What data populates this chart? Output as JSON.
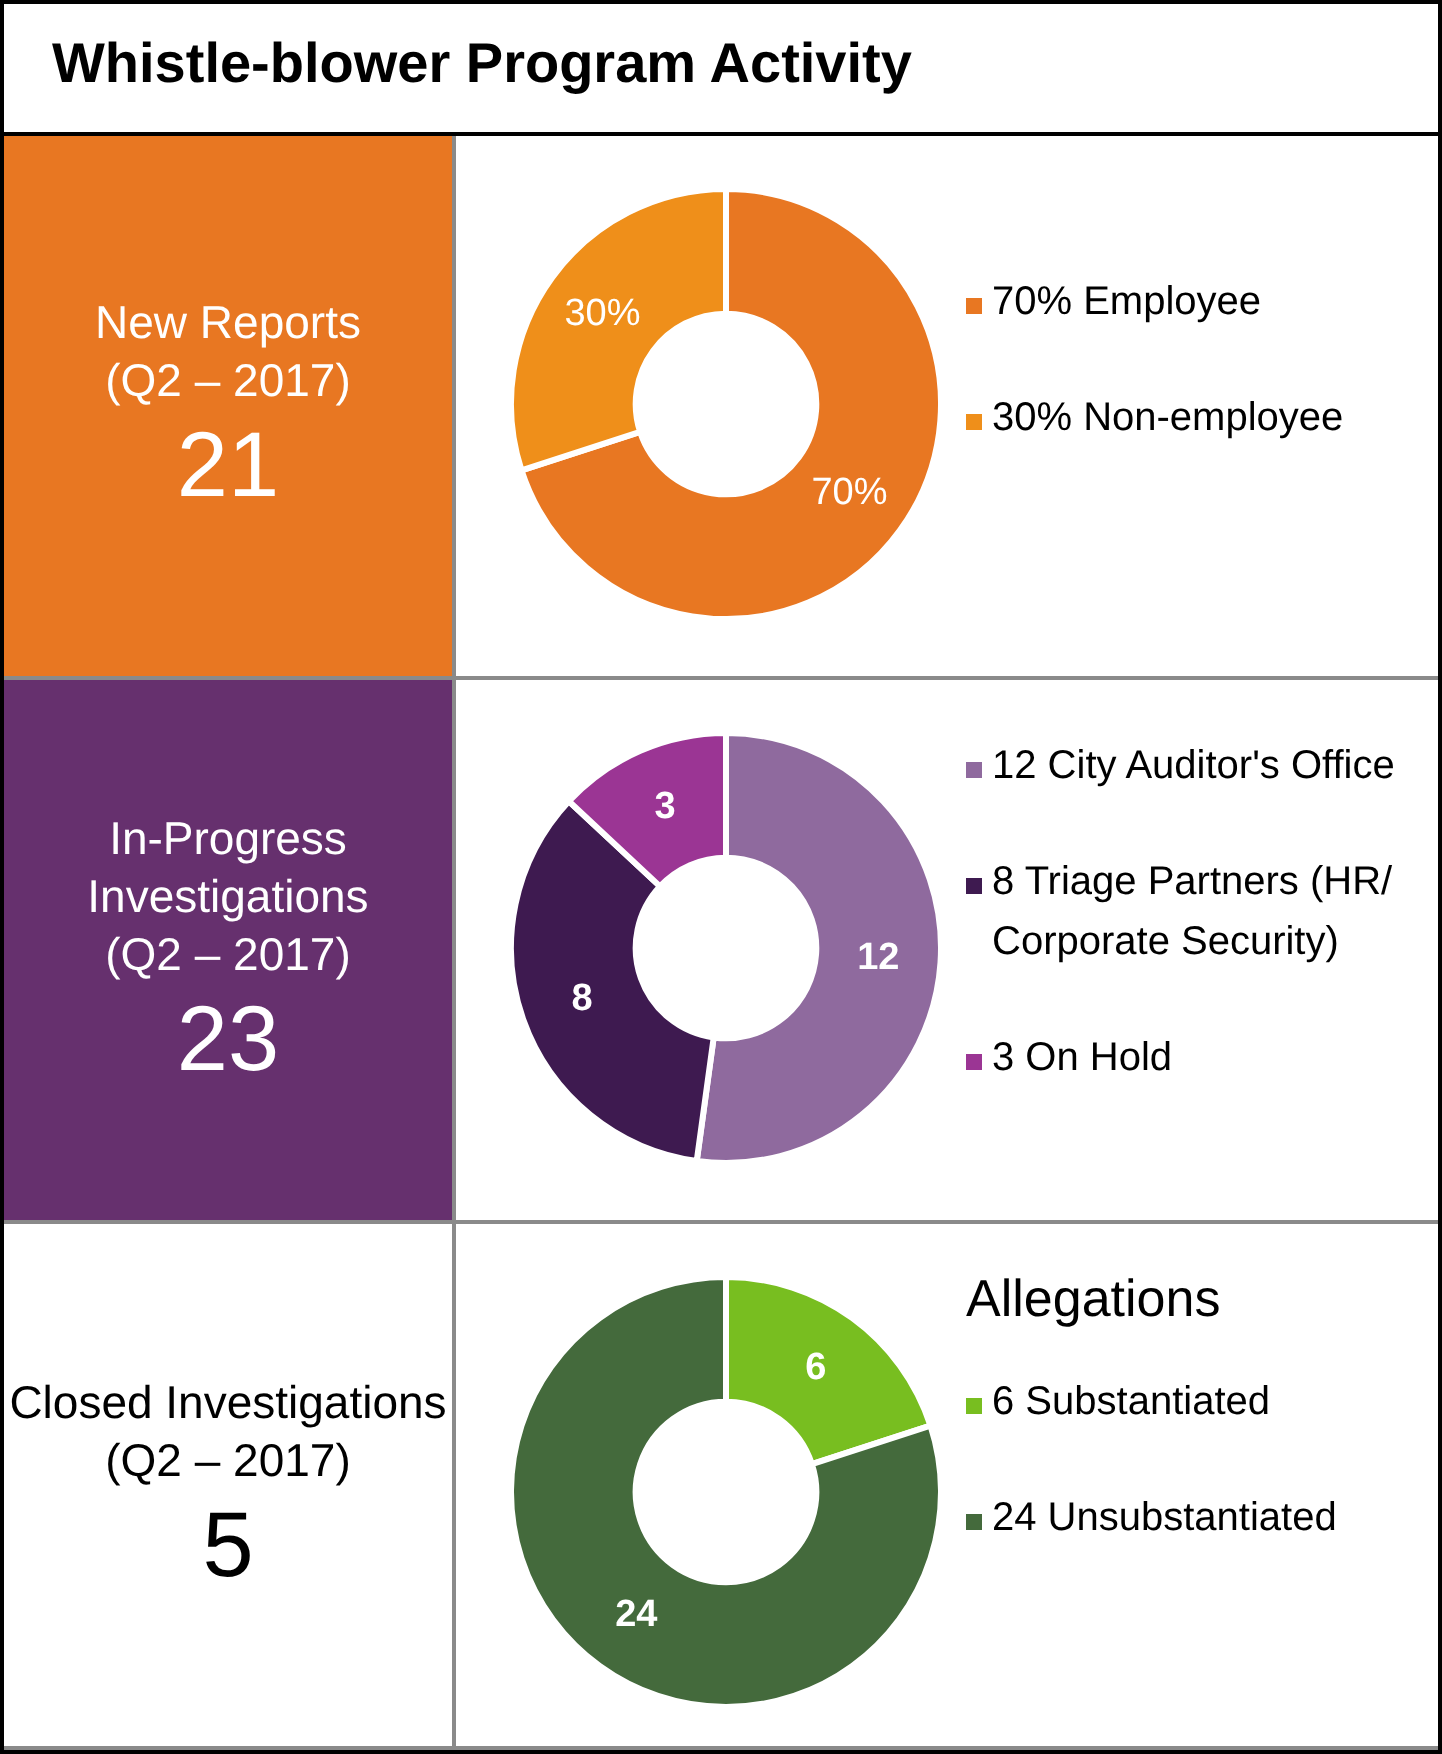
{
  "chart_data": [
    {
      "type": "other",
      "title": "Whistle-blower Program Activity"
    },
    {
      "type": "other",
      "title": "New Reports",
      "subtitle": "(Q2 – 2017)",
      "annotations": [
        "21"
      ],
      "color": "#e87722"
    },
    {
      "type": "donut",
      "categories": [
        "70% Employee",
        "30% Non-employee"
      ],
      "values": [
        70,
        30
      ],
      "colors": [
        "#e87722",
        "#ef8f1a"
      ],
      "value_labels": [
        "70%",
        "30%"
      ],
      "legend": "right"
    },
    {
      "type": "other",
      "title": "In-Progress Investigations",
      "subtitle": "(Q2 – 2017)",
      "annotations": [
        "23"
      ],
      "color": "#66306e"
    },
    {
      "type": "donut",
      "categories": [
        "12 City Auditor's Office",
        "8 Triage Partners (HR/ Corporate Security)",
        "3 On Hold"
      ],
      "values": [
        12,
        8,
        3
      ],
      "colors": [
        "#8f6a9e",
        "#3e1a50",
        "#9b3594"
      ],
      "data_labels": true,
      "legend": "right"
    },
    {
      "type": "other",
      "title": "Closed Investigations",
      "subtitle": "(Q2 – 2017)",
      "annotations": [
        "5"
      ],
      "color": "#ffffff"
    },
    {
      "type": "donut",
      "legend_title": "Allegations",
      "categories": [
        "6 Substantiated",
        "24 Unsubstantiated"
      ],
      "values": [
        6,
        24
      ],
      "colors": [
        "#78be20",
        "#446a3c"
      ],
      "data_labels": true,
      "legend": "right"
    }
  ]
}
